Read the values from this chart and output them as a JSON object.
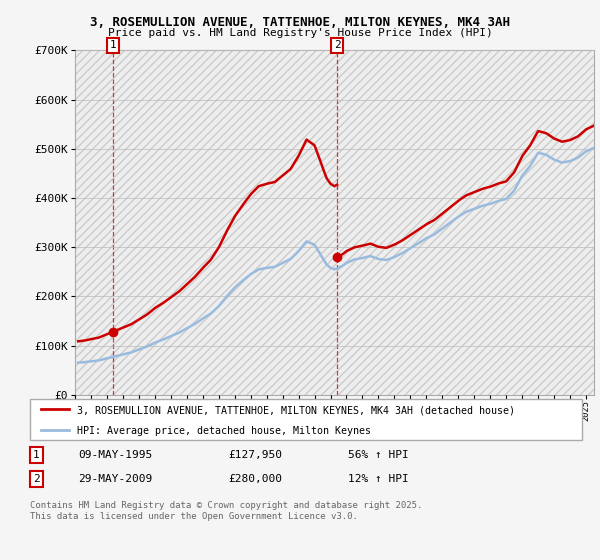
{
  "title_line1": "3, ROSEMULLION AVENUE, TATTENHOE, MILTON KEYNES, MK4 3AH",
  "title_line2": "Price paid vs. HM Land Registry's House Price Index (HPI)",
  "ylim": [
    0,
    700000
  ],
  "yticks": [
    0,
    100000,
    200000,
    300000,
    400000,
    500000,
    600000,
    700000
  ],
  "ytick_labels": [
    "£0",
    "£100K",
    "£200K",
    "£300K",
    "£400K",
    "£500K",
    "£600K",
    "£700K"
  ],
  "red_color": "#cc0000",
  "blue_color": "#99bbdd",
  "marker1_x": 1995.37,
  "marker1_y": 127950,
  "marker2_x": 2009.41,
  "marker2_y": 280000,
  "vline1_x": 1995.37,
  "vline2_x": 2009.41,
  "legend_label1": "3, ROSEMULLION AVENUE, TATTENHOE, MILTON KEYNES, MK4 3AH (detached house)",
  "legend_label2": "HPI: Average price, detached house, Milton Keynes",
  "table_row1": [
    "1",
    "09-MAY-1995",
    "£127,950",
    "56% ↑ HPI"
  ],
  "table_row2": [
    "2",
    "29-MAY-2009",
    "£280,000",
    "12% ↑ HPI"
  ],
  "footer": "Contains HM Land Registry data © Crown copyright and database right 2025.\nThis data is licensed under the Open Government Licence v3.0.",
  "xmin": 1993,
  "xmax": 2025.5,
  "hpi_years": [
    1993.0,
    1993.5,
    1994.0,
    1994.5,
    1995.0,
    1995.5,
    1996.0,
    1996.5,
    1997.0,
    1997.5,
    1998.0,
    1998.5,
    1999.0,
    1999.5,
    2000.0,
    2000.5,
    2001.0,
    2001.5,
    2002.0,
    2002.5,
    2003.0,
    2003.5,
    2004.0,
    2004.5,
    2005.0,
    2005.5,
    2006.0,
    2006.5,
    2007.0,
    2007.5,
    2008.0,
    2008.25,
    2008.5,
    2008.75,
    2009.0,
    2009.25,
    2009.5,
    2009.75,
    2010.0,
    2010.5,
    2011.0,
    2011.5,
    2012.0,
    2012.5,
    2013.0,
    2013.5,
    2014.0,
    2014.5,
    2015.0,
    2015.5,
    2016.0,
    2016.5,
    2017.0,
    2017.5,
    2018.0,
    2018.5,
    2019.0,
    2019.5,
    2020.0,
    2020.5,
    2021.0,
    2021.5,
    2022.0,
    2022.5,
    2023.0,
    2023.5,
    2024.0,
    2024.5,
    2025.0,
    2025.5
  ],
  "hpi_values": [
    65000,
    66000,
    68000,
    70000,
    74000,
    78000,
    82000,
    86000,
    92000,
    98000,
    106000,
    112000,
    119000,
    126000,
    135000,
    144000,
    155000,
    165000,
    180000,
    200000,
    218000,
    232000,
    245000,
    255000,
    258000,
    260000,
    268000,
    276000,
    292000,
    312000,
    305000,
    292000,
    278000,
    265000,
    258000,
    255000,
    258000,
    262000,
    268000,
    275000,
    278000,
    282000,
    276000,
    274000,
    280000,
    288000,
    298000,
    308000,
    318000,
    326000,
    338000,
    350000,
    362000,
    372000,
    378000,
    384000,
    388000,
    394000,
    398000,
    415000,
    445000,
    465000,
    492000,
    488000,
    478000,
    472000,
    475000,
    482000,
    495000,
    502000
  ]
}
